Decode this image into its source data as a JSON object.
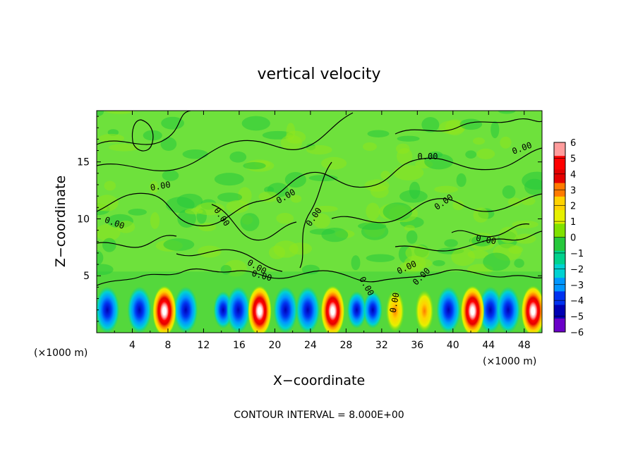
{
  "chart_data": {
    "type": "heatmap",
    "title": "vertical velocity",
    "xlabel": "X−coordinate",
    "ylabel": "Z−coordinate",
    "x_unit": "(×1000 m)",
    "x_unit_right": "(×1000 m)",
    "footer": "CONTOUR INTERVAL = 8.000E+00",
    "xlim": [
      0,
      50
    ],
    "ylim": [
      0,
      19.5
    ],
    "x_ticks": [
      "4",
      "8",
      "12",
      "16",
      "20",
      "24",
      "28",
      "32",
      "36",
      "40",
      "44",
      "48"
    ],
    "x_tick_values": [
      4,
      8,
      12,
      16,
      20,
      24,
      28,
      32,
      36,
      40,
      44,
      48
    ],
    "y_ticks": [
      "5",
      "10",
      "15"
    ],
    "y_tick_values": [
      5,
      10,
      15
    ],
    "colorbar": {
      "labels": [
        "6",
        "5",
        "4",
        "3",
        "2",
        "1",
        "0",
        "−1",
        "−2",
        "−3",
        "−4",
        "−5",
        "−6"
      ],
      "colors": [
        "#ff9c9c",
        "#ff0000",
        "#e40000",
        "#ff7a00",
        "#ffd200",
        "#e6f000",
        "#80e100",
        "#26c83c",
        "#00d28c",
        "#00d2d2",
        "#0096ff",
        "#0032f0",
        "#0000b4",
        "#6a00c8"
      ]
    },
    "contour_labels": [
      "0.00",
      "0.00",
      "0.00",
      "0.00",
      "0.00",
      "0.00",
      "0.00",
      "0.00",
      "0.00",
      "0.00",
      "0.00",
      "0.00",
      "0.00",
      "0.00",
      "0.00"
    ],
    "updraft_x": [
      7.6,
      18.3,
      26.5,
      33.5,
      36.8,
      42.2,
      49.0
    ],
    "updraft_peak": [
      6,
      6,
      6,
      3,
      2,
      6,
      6
    ],
    "downdraft_x": [
      1.2,
      4.8,
      10.0,
      14.2,
      15.9,
      21.2,
      23.7,
      29.2,
      31.0,
      39.5,
      44.2,
      46.2
    ],
    "downdraft_peak": [
      -5,
      -5,
      -5,
      -4,
      -5,
      -5,
      -5,
      -4,
      -4,
      -5,
      -5,
      -5
    ],
    "near_surface_z_max": 5
  }
}
